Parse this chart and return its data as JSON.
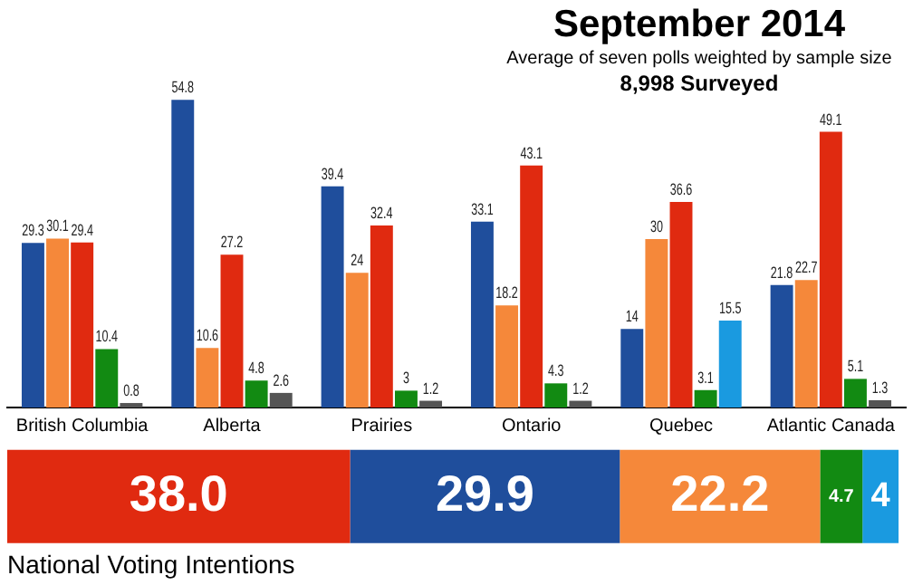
{
  "chart_data": [
    {
      "type": "bar",
      "title": "September 2014",
      "subtitle": "Average of seven polls weighted by sample size",
      "annotations": [
        "8,998 Surveyed"
      ],
      "categories": [
        "British Columbia",
        "Alberta",
        "Prairies",
        "Ontario",
        "Quebec",
        "Atlantic Canada"
      ],
      "series": [
        {
          "color": "#1f4e9c",
          "values": [
            29.3,
            54.8,
            39.4,
            33.1,
            14,
            21.8
          ]
        },
        {
          "color": "#f5883a",
          "values": [
            30.1,
            10.6,
            24,
            18.2,
            30,
            22.7
          ]
        },
        {
          "color": "#e02a10",
          "values": [
            29.4,
            27.2,
            32.4,
            43.1,
            36.6,
            49.1
          ]
        },
        {
          "color": "#128a12",
          "values": [
            10.4,
            4.8,
            3,
            4.3,
            3.1,
            5.1
          ]
        },
        {
          "color": "#555555",
          "values": [
            0.8,
            2.6,
            1.2,
            1.2,
            null,
            1.3
          ]
        },
        {
          "color": "#1a9ae0",
          "values": [
            null,
            null,
            null,
            null,
            15.5,
            null
          ]
        }
      ],
      "data_labels": true,
      "grid": false,
      "tick_labels": "x"
    },
    {
      "type": "bar",
      "orientation": "horizontal",
      "stacked": true,
      "xlabel": "National Voting Intentions",
      "categories": [
        null
      ],
      "series": [
        {
          "color": "#e02a10",
          "values": [
            38.0
          ],
          "value_labels": [
            "38.0"
          ]
        },
        {
          "color": "#1f4e9c",
          "values": [
            29.9
          ],
          "value_labels": [
            "29.9"
          ]
        },
        {
          "color": "#f5883a",
          "values": [
            22.2
          ],
          "value_labels": [
            "22.2"
          ]
        },
        {
          "color": "#128a12",
          "values": [
            4.7
          ],
          "value_labels": [
            "4.7"
          ]
        },
        {
          "color": "#1a9ae0",
          "values": [
            4
          ],
          "value_labels": [
            "4"
          ]
        }
      ],
      "grid": false,
      "tick_labels": false
    }
  ]
}
